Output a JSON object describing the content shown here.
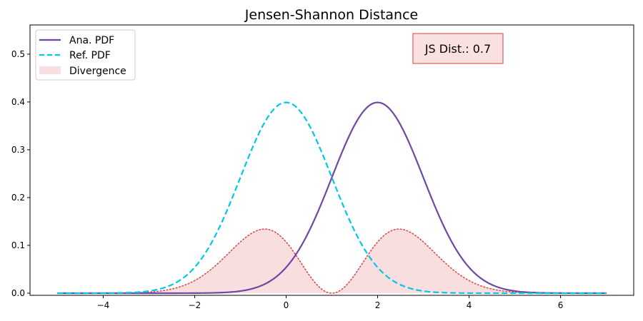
{
  "chart_data": {
    "type": "line",
    "title": "Jensen-Shannon Distance",
    "xlabel": "",
    "ylabel": "",
    "xlim": [
      -5.6,
      7.6
    ],
    "ylim": [
      -0.0045,
      0.561
    ],
    "x_range": [
      -5,
      7
    ],
    "x_ticks": [
      -4,
      -2,
      0,
      2,
      4,
      6
    ],
    "x_tick_labels": [
      "−4",
      "−2",
      "0",
      "2",
      "4",
      "6"
    ],
    "y_ticks": [
      0.0,
      0.1,
      0.2,
      0.3,
      0.4,
      0.5
    ],
    "y_tick_labels": [
      "0.0",
      "0.1",
      "0.2",
      "0.3",
      "0.4",
      "0.5"
    ],
    "grid": false,
    "legend_placement": "top-left",
    "series": [
      {
        "name": "Ana. PDF",
        "kind": "normal_pdf",
        "mean": 2,
        "std": 1,
        "style": "solid",
        "color": "#6f47a6"
      },
      {
        "name": "Ref. PDF",
        "kind": "normal_pdf",
        "mean": 0,
        "std": 1,
        "style": "dashed",
        "color": "#00c8e6"
      },
      {
        "name": "Divergence",
        "kind": "pointwise_js_log2",
        "style": "dotted-filled",
        "color": "#e04848",
        "fill": "#f8dede"
      }
    ],
    "annotation": {
      "text": "JS Dist.: 0.7",
      "placement": "top-right",
      "face": "#fae1e1",
      "edge": "#e05a5a"
    }
  }
}
